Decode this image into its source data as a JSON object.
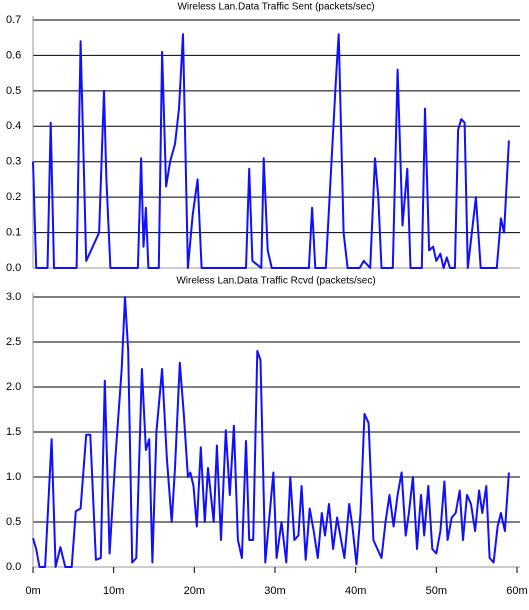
{
  "chart_data": [
    {
      "type": "line",
      "title": "Wireless Lan.Data Traffic Sent (packets/sec)",
      "grid": true,
      "xlim": [
        0,
        60
      ],
      "ylim": [
        0,
        0.7
      ],
      "yticks": [
        {
          "value": 0,
          "label": "0.0"
        },
        0.1,
        0.2,
        0.3,
        0.4,
        0.5,
        0.6,
        0.7
      ],
      "x": [
        0,
        0.4,
        1.8,
        2.2,
        2.6,
        5.4,
        5.9,
        6.6,
        7.2,
        8.2,
        8.8,
        9.1,
        9.6,
        13,
        13.4,
        13.7,
        14,
        14.3,
        15.6,
        16,
        16.5,
        17,
        17.6,
        18.1,
        18.6,
        19.2,
        19.8,
        20.4,
        20.9,
        26.4,
        26.8,
        27.2,
        28.3,
        28.6,
        29.1,
        29.6,
        34.2,
        34.6,
        35,
        36.3,
        37,
        37.6,
        37.9,
        38.5,
        39,
        40.5,
        41,
        41.8,
        42.4,
        42.8,
        43.2,
        44.6,
        45.2,
        45.8,
        46.4,
        46.8,
        48.2,
        48.6,
        49.1,
        49.6,
        50,
        50.5,
        50.9,
        51.3,
        51.7,
        52.3,
        52.7,
        53.1,
        53.5,
        53.9,
        54.9,
        55.5,
        57.5,
        58,
        58.4,
        59
      ],
      "series": [
        {
          "color": "#1010ff",
          "values": [
            0.3,
            0,
            0,
            0.41,
            0,
            0,
            0.64,
            0.02,
            0.05,
            0.1,
            0.5,
            0.25,
            0,
            0,
            0.31,
            0.06,
            0.17,
            0,
            0,
            0.61,
            0.23,
            0.3,
            0.35,
            0.45,
            0.66,
            0,
            0.15,
            0.25,
            0,
            0,
            0.28,
            0.02,
            0,
            0.31,
            0.05,
            0,
            0,
            0.17,
            0,
            0,
            0.3,
            0.55,
            0.66,
            0.1,
            0,
            0,
            0.02,
            0,
            0.31,
            0.2,
            0,
            0,
            0.56,
            0.12,
            0.28,
            0,
            0,
            0.45,
            0.05,
            0.06,
            0.02,
            0.04,
            0,
            0.03,
            0,
            0,
            0.39,
            0.42,
            0.41,
            0,
            0.2,
            0,
            0,
            0.14,
            0.1,
            0.36
          ]
        }
      ]
    },
    {
      "type": "line",
      "title": "Wireless Lan.Data Traffic Rcvd (packets/sec)",
      "grid": true,
      "xlim": [
        0,
        60
      ],
      "ylim": [
        0,
        3
      ],
      "yticks": [
        {
          "value": 0,
          "label": "0.0"
        },
        0.5,
        {
          "value": 1,
          "label": "1.0"
        },
        1.5,
        {
          "value": 2,
          "label": "2.0"
        },
        2.5,
        {
          "value": 3,
          "label": "3.0"
        }
      ],
      "xticks": [
        {
          "value": 0,
          "label": "0m"
        },
        {
          "value": 10,
          "label": "10m"
        },
        {
          "value": 20,
          "label": "20m"
        },
        {
          "value": 30,
          "label": "30m"
        },
        {
          "value": 40,
          "label": "40m"
        },
        {
          "value": 50,
          "label": "50m"
        },
        {
          "value": 60,
          "label": "60m"
        }
      ],
      "x": [
        0,
        0.4,
        0.8,
        1.5,
        2.3,
        2.8,
        3.4,
        4,
        4.8,
        5.3,
        5.9,
        6.6,
        7.1,
        7.8,
        8.4,
        8.9,
        9.5,
        10.2,
        11,
        11.4,
        11.8,
        12.3,
        12.8,
        13.5,
        14,
        14.4,
        14.8,
        15.3,
        16,
        16.6,
        17.2,
        17.6,
        18.2,
        18.7,
        19.2,
        19.5,
        19.9,
        20.3,
        20.8,
        21.3,
        21.7,
        22.4,
        22.8,
        23.3,
        23.9,
        24.4,
        24.9,
        25.4,
        25.9,
        26.4,
        26.8,
        27.3,
        27.8,
        28.2,
        28.8,
        29.2,
        29.8,
        30.2,
        30.8,
        31.4,
        31.9,
        32.4,
        32.9,
        33.3,
        33.8,
        34.3,
        34.8,
        35.3,
        35.8,
        36.2,
        36.7,
        37.2,
        37.7,
        38.2,
        38.6,
        39.2,
        39.6,
        40.1,
        40.6,
        41.1,
        41.6,
        42.2,
        42.7,
        43.2,
        43.7,
        44.2,
        44.7,
        45.2,
        45.7,
        46.2,
        46.6,
        47.1,
        47.6,
        48.1,
        48.5,
        49,
        49.5,
        50,
        50.5,
        51,
        51.4,
        51.9,
        52.4,
        52.9,
        53.3,
        53.8,
        54.3,
        54.8,
        55.3,
        55.7,
        56.2,
        56.6,
        57.1,
        57.6,
        58,
        58.5,
        59
      ],
      "series": [
        {
          "color": "#1010ff",
          "values": [
            0.32,
            0.2,
            0,
            0,
            1.42,
            0,
            0.22,
            0,
            0,
            0.62,
            0.65,
            1.47,
            1.47,
            0.08,
            0.1,
            2.07,
            0.15,
            1.2,
            2.2,
            3.0,
            2.4,
            0.05,
            0.1,
            2.2,
            1.3,
            1.42,
            0.05,
            1.5,
            2.2,
            1.2,
            0.5,
            1.1,
            2.27,
            1.7,
            1.0,
            1.05,
            0.9,
            0.45,
            1.33,
            0.5,
            1.1,
            0.5,
            1.35,
            0.3,
            1.52,
            0.8,
            1.57,
            0.3,
            0.1,
            1.4,
            0.3,
            0.3,
            2.4,
            2.3,
            0.05,
            0.45,
            1.05,
            0.1,
            0.5,
            0.05,
            1.0,
            0.3,
            0.35,
            0.9,
            0.08,
            0.65,
            0.4,
            0.1,
            0.6,
            0.35,
            0.7,
            0.2,
            0.55,
            0.3,
            0.1,
            0.7,
            0.45,
            0.03,
            0.6,
            1.7,
            1.6,
            0.3,
            0.2,
            0.1,
            0.5,
            0.8,
            0.45,
            0.8,
            1.05,
            0.35,
            0.6,
            1.0,
            0.2,
            0.8,
            0.35,
            0.9,
            0.2,
            0.15,
            0.4,
            0.95,
            0.3,
            0.55,
            0.6,
            0.85,
            0.3,
            0.8,
            0.7,
            0.4,
            0.85,
            0.6,
            0.9,
            0.1,
            0.05,
            0.45,
            0.6,
            0.4,
            1.05
          ]
        }
      ]
    }
  ]
}
